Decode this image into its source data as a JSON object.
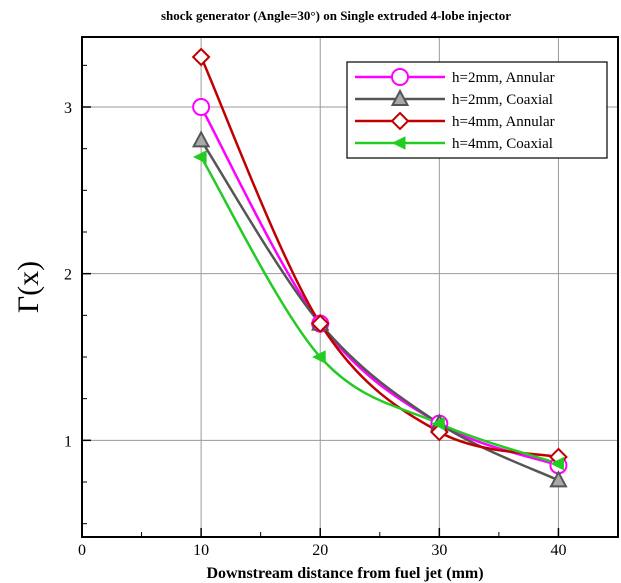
{
  "chart_data": {
    "type": "line",
    "title": "shock generator (Angle=30°) on Single extruded 4-lobe injector",
    "xlabel": "Downstream distance from fuel jet (mm)",
    "ylabel": "Γ(x)",
    "xlim": [
      0,
      45
    ],
    "ylim": [
      0.42,
      3.42
    ],
    "xticks": [
      0,
      10,
      20,
      30,
      40
    ],
    "yticks": [
      1,
      2,
      3
    ],
    "x_tick_labels": [
      "0",
      "10",
      "20",
      "30",
      "40"
    ],
    "y_tick_labels": [
      "1",
      "2",
      "3"
    ],
    "grid": true,
    "legend_position": "top-right",
    "x": [
      10,
      20,
      30,
      40
    ],
    "series": [
      {
        "name": "h=2mm, Annular",
        "values": [
          3.0,
          1.7,
          1.1,
          0.85
        ],
        "color": "#ff00ff",
        "marker": "circle"
      },
      {
        "name": "h=2mm, Coaxial",
        "values": [
          2.8,
          1.7,
          1.1,
          0.76
        ],
        "color": "#555555",
        "marker": "triangle-up"
      },
      {
        "name": "h=4mm, Annular",
        "values": [
          3.3,
          1.7,
          1.05,
          0.9
        ],
        "color": "#c00000",
        "marker": "diamond"
      },
      {
        "name": "h=4mm, Coaxial",
        "values": [
          2.7,
          1.5,
          1.1,
          0.86
        ],
        "color": "#22cc22",
        "marker": "triangle-left"
      }
    ]
  }
}
